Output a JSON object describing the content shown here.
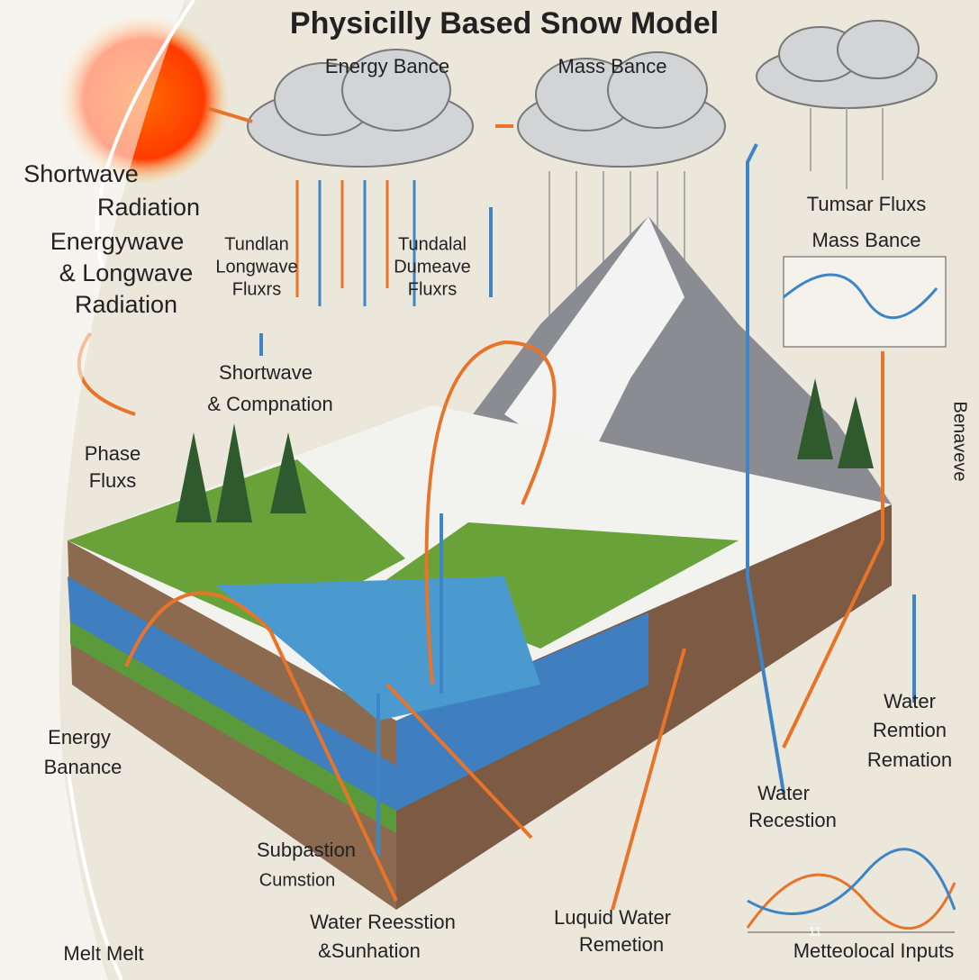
{
  "slide": {
    "title": "Physicilly Based Snow Model",
    "labels": [
      {
        "lines": [
          "Energy Bance"
        ]
      },
      {
        "lines": [
          "Mass Bance"
        ]
      },
      {
        "lines": [
          "Shortwave",
          "Radiation"
        ]
      },
      {
        "lines": [
          "Energywave",
          "& Longwave",
          "Radiation"
        ]
      },
      {
        "lines": [
          "Tundlan",
          "Longwave",
          "Fluxrs"
        ]
      },
      {
        "lines": [
          "Tundalal",
          "Dumeave",
          "Fluxrs"
        ]
      },
      {
        "lines": [
          "Shortwave",
          "& Compnation"
        ]
      },
      {
        "lines": [
          "Phase",
          "Fluxs"
        ]
      },
      {
        "lines": [
          "Tumsar Fluxs",
          "Mass Bance"
        ]
      },
      {
        "lines": [
          "Energy",
          "Banance"
        ]
      },
      {
        "lines": [
          "Water",
          "Remtion",
          "Remation"
        ]
      },
      {
        "lines": [
          "Water",
          "Recestion"
        ]
      },
      {
        "lines": [
          "Subpastion",
          "Cumstion"
        ]
      },
      {
        "lines": [
          "Water Reesstion",
          "&Sunhation"
        ]
      },
      {
        "lines": [
          "Luquid Water",
          "Remetion"
        ]
      },
      {
        "lines": [
          "Metteolocal Inputs"
        ]
      },
      {
        "lines": [
          "Melt Melt"
        ]
      },
      {
        "lines": [
          "Benaveve"
        ]
      }
    ],
    "page_number": "11"
  }
}
